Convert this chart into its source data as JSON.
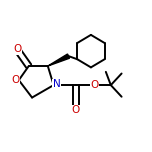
{
  "background_color": "#ffffff",
  "bond_color": "#000000",
  "atom_colors": {
    "O": "#cc0000",
    "N": "#0000cc",
    "C": "#000000"
  },
  "bond_width": 1.4,
  "figsize": [
    1.52,
    1.52
  ],
  "dpi": 100
}
